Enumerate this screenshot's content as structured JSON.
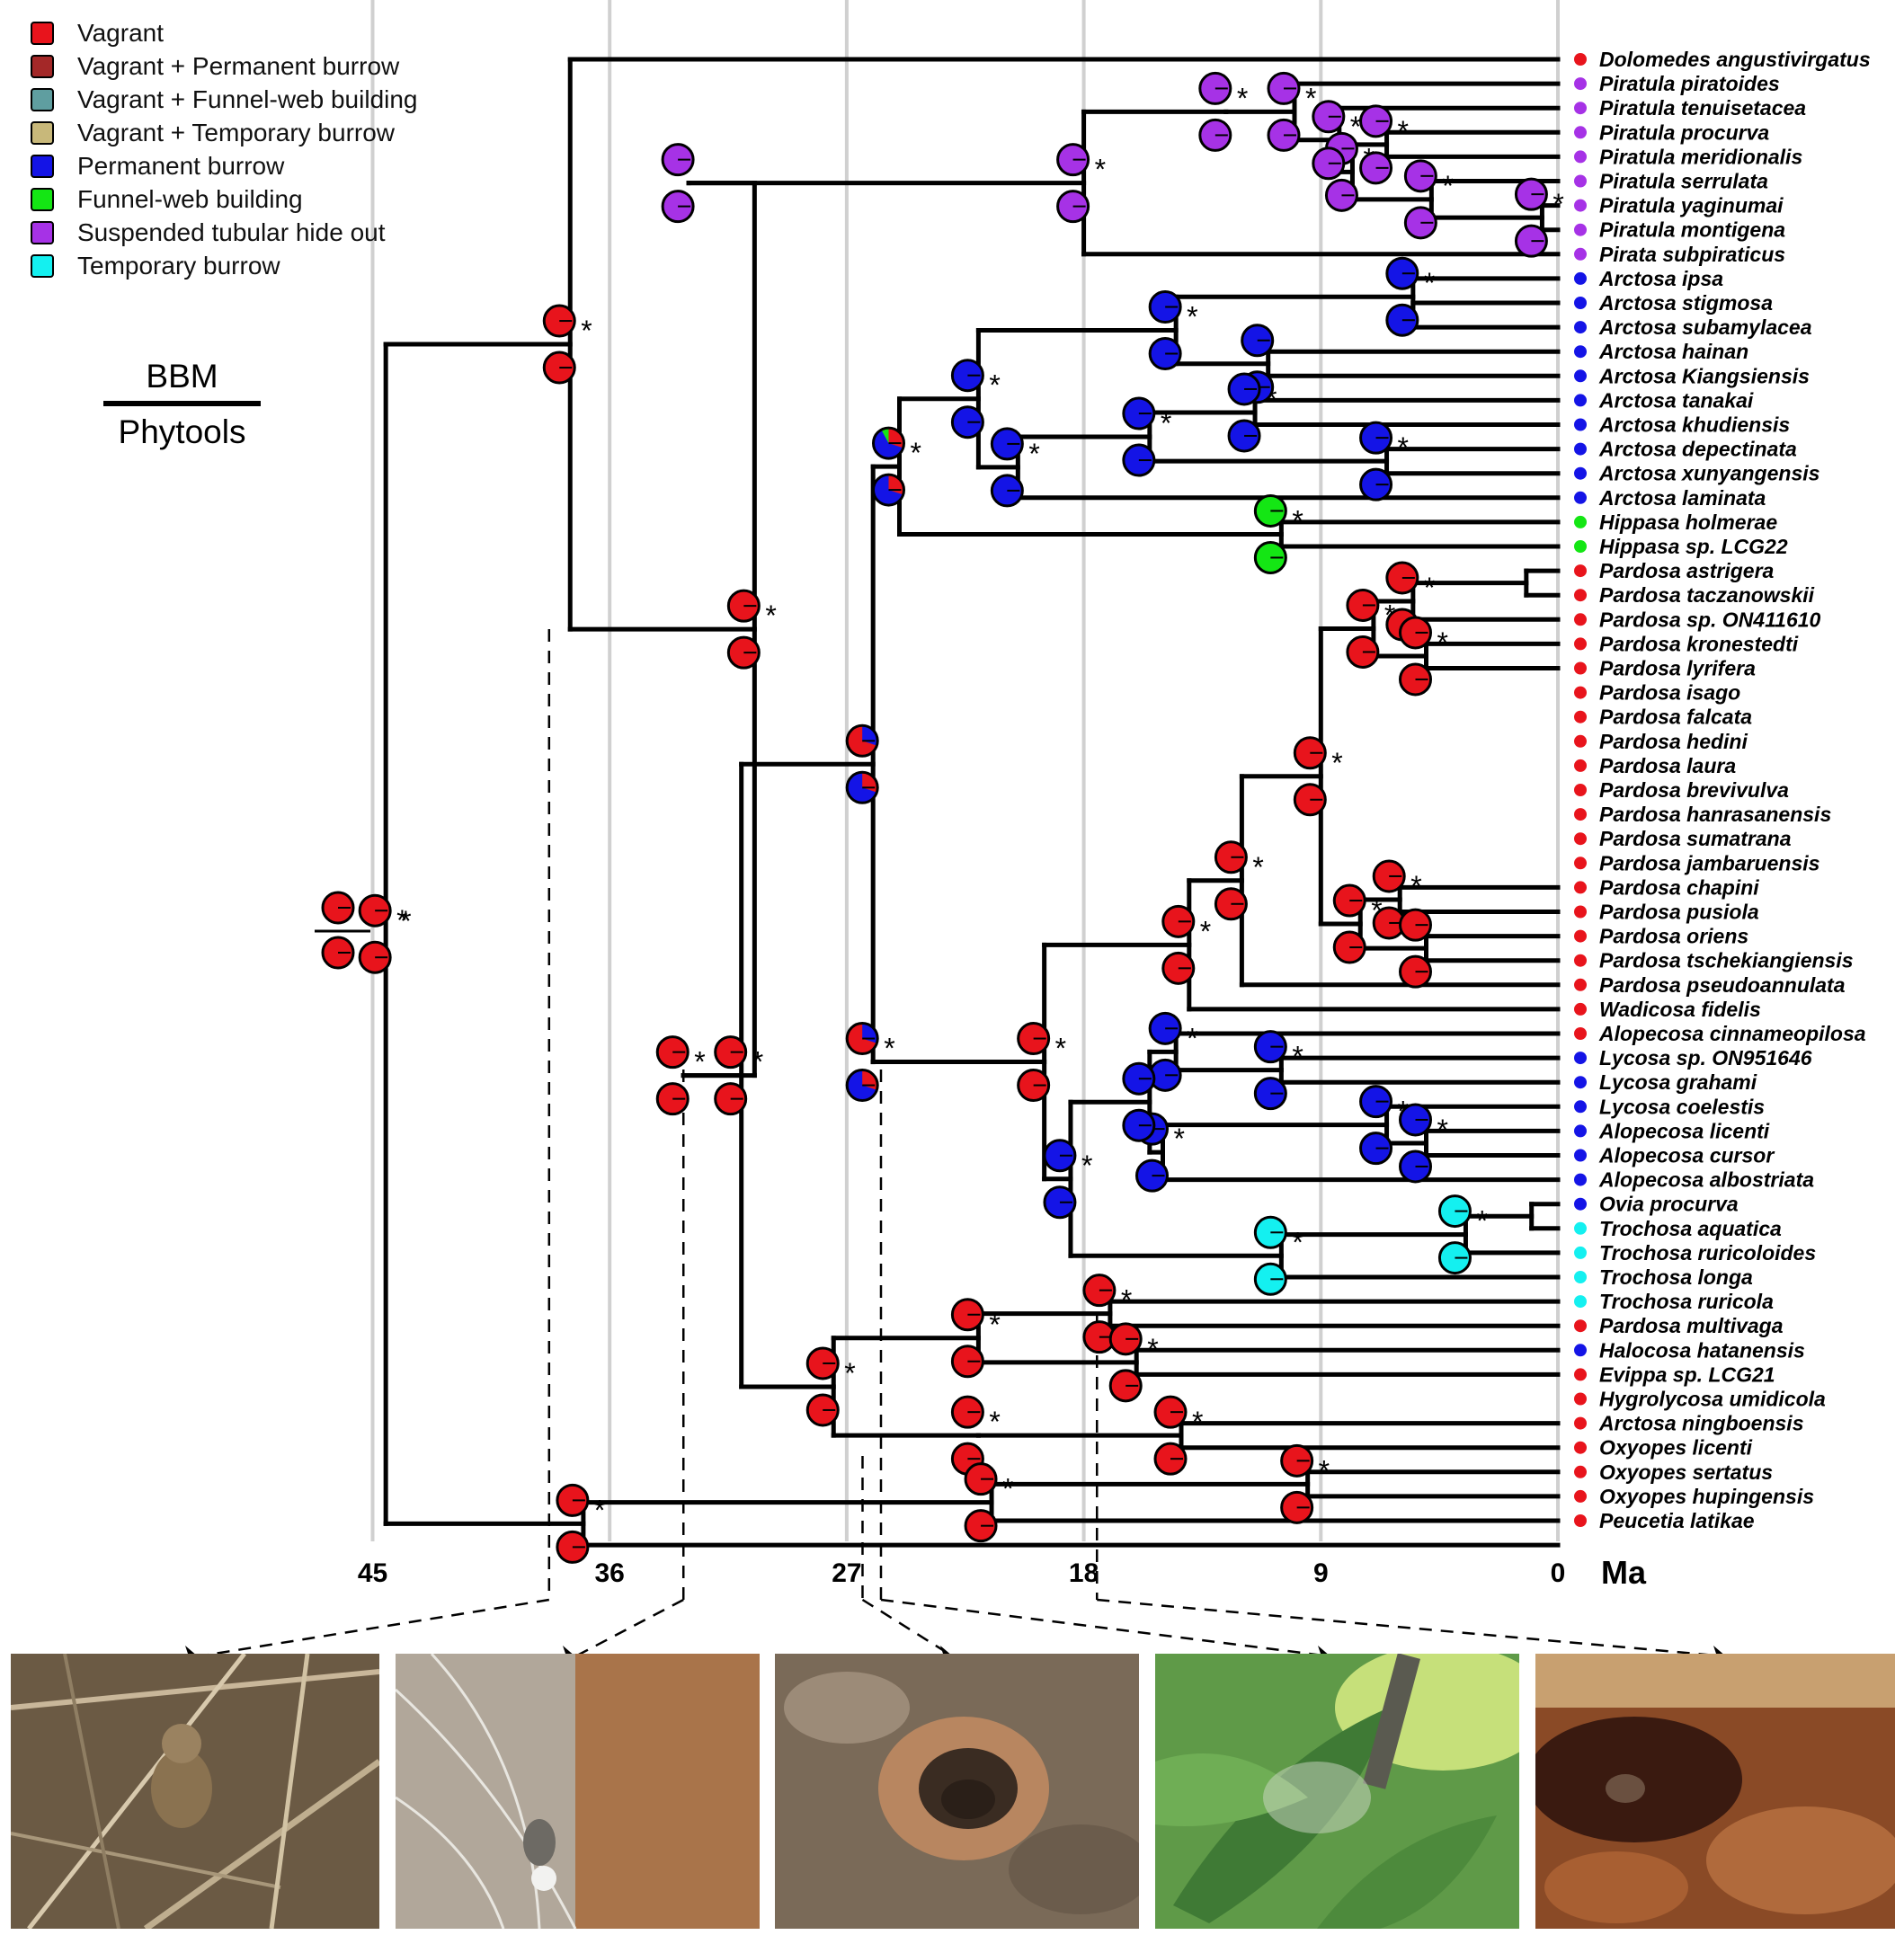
{
  "legend": {
    "items": [
      {
        "label": "Vagrant",
        "color": "#e8141c"
      },
      {
        "label": "Vagrant + Permanent burrow",
        "color": "#a42828"
      },
      {
        "label": "Vagrant + Funnel-web building",
        "color": "#5f9ea0"
      },
      {
        "label": "Vagrant + Temporary burrow",
        "color": "#c8b87a"
      },
      {
        "label": "Permanent burrow",
        "color": "#1414e6"
      },
      {
        "label": "Funnel-web building",
        "color": "#14e614"
      },
      {
        "label": "Suspended tubular hide out",
        "color": "#a632e6"
      },
      {
        "label": "Temporary burrow",
        "color": "#14f0f0"
      }
    ]
  },
  "methods": {
    "top": "BBM",
    "bottom": "Phytools"
  },
  "axis": {
    "ticks": [
      "45",
      "36",
      "27",
      "18",
      "9",
      "0"
    ],
    "unit": "Ma"
  },
  "taxa": [
    {
      "label": "Dolomedes angustivirgatus",
      "state": "Vagrant"
    },
    {
      "label": "Piratula piratoides",
      "state": "Suspended tubular hide out"
    },
    {
      "label": "Piratula tenuisetacea",
      "state": "Suspended tubular hide out"
    },
    {
      "label": "Piratula procurva",
      "state": "Suspended tubular hide out"
    },
    {
      "label": "Piratula meridionalis",
      "state": "Suspended tubular hide out"
    },
    {
      "label": "Piratula serrulata",
      "state": "Suspended tubular hide out"
    },
    {
      "label": "Piratula yaginumai",
      "state": "Suspended tubular hide out"
    },
    {
      "label": "Piratula montigena",
      "state": "Suspended tubular hide out"
    },
    {
      "label": "Pirata subpiraticus",
      "state": "Suspended tubular hide out"
    },
    {
      "label": "Arctosa ipsa",
      "state": "Permanent burrow"
    },
    {
      "label": "Arctosa stigmosa",
      "state": "Permanent burrow"
    },
    {
      "label": "Arctosa subamylacea",
      "state": "Permanent burrow"
    },
    {
      "label": "Arctosa hainan",
      "state": "Permanent burrow"
    },
    {
      "label": "Arctosa Kiangsiensis",
      "state": "Permanent burrow"
    },
    {
      "label": "Arctosa tanakai",
      "state": "Permanent burrow"
    },
    {
      "label": "Arctosa khudiensis",
      "state": "Permanent burrow"
    },
    {
      "label": "Arctosa depectinata",
      "state": "Permanent burrow"
    },
    {
      "label": "Arctosa xunyangensis",
      "state": "Permanent burrow"
    },
    {
      "label": "Arctosa laminata",
      "state": "Permanent burrow"
    },
    {
      "label": "Hippasa holmerae",
      "state": "Funnel-web building"
    },
    {
      "label": "Hippasa sp. LCG22",
      "state": "Funnel-web building"
    },
    {
      "label": "Pardosa astrigera",
      "state": "Vagrant"
    },
    {
      "label": "Pardosa taczanowskii",
      "state": "Vagrant"
    },
    {
      "label": "Pardosa sp. ON411610",
      "state": "Vagrant"
    },
    {
      "label": "Pardosa kronestedti",
      "state": "Vagrant"
    },
    {
      "label": "Pardosa lyrifera",
      "state": "Vagrant"
    },
    {
      "label": "Pardosa isago",
      "state": "Vagrant"
    },
    {
      "label": "Pardosa falcata",
      "state": "Vagrant"
    },
    {
      "label": "Pardosa hedini",
      "state": "Vagrant"
    },
    {
      "label": "Pardosa laura",
      "state": "Vagrant"
    },
    {
      "label": "Pardosa brevivulva",
      "state": "Vagrant"
    },
    {
      "label": "Pardosa hanrasanensis",
      "state": "Vagrant"
    },
    {
      "label": "Pardosa sumatrana",
      "state": "Vagrant"
    },
    {
      "label": "Pardosa jambaruensis",
      "state": "Vagrant"
    },
    {
      "label": "Pardosa chapini",
      "state": "Vagrant"
    },
    {
      "label": "Pardosa pusiola",
      "state": "Vagrant"
    },
    {
      "label": "Pardosa oriens",
      "state": "Vagrant"
    },
    {
      "label": "Pardosa tschekiangiensis",
      "state": "Vagrant"
    },
    {
      "label": "Pardosa pseudoannulata",
      "state": "Vagrant"
    },
    {
      "label": "Wadicosa fidelis",
      "state": "Vagrant"
    },
    {
      "label": "Alopecosa cinnameopilosa",
      "state": "Vagrant"
    },
    {
      "label": "Lycosa sp. ON951646",
      "state": "Permanent burrow"
    },
    {
      "label": "Lycosa grahami",
      "state": "Permanent burrow"
    },
    {
      "label": "Lycosa coelestis",
      "state": "Permanent burrow"
    },
    {
      "label": "Alopecosa licenti",
      "state": "Permanent burrow"
    },
    {
      "label": "Alopecosa cursor",
      "state": "Permanent burrow"
    },
    {
      "label": "Alopecosa albostriata",
      "state": "Permanent burrow"
    },
    {
      "label": "Ovia procurva",
      "state": "Permanent burrow"
    },
    {
      "label": "Trochosa aquatica",
      "state": "Temporary burrow"
    },
    {
      "label": "Trochosa ruricoloides",
      "state": "Temporary burrow"
    },
    {
      "label": "Trochosa longa",
      "state": "Temporary burrow"
    },
    {
      "label": "Trochosa ruricola",
      "state": "Temporary burrow"
    },
    {
      "label": "Pardosa multivaga",
      "state": "Vagrant"
    },
    {
      "label": "Halocosa hatanensis",
      "state": "Permanent burrow"
    },
    {
      "label": "Evippa sp. LCG21",
      "state": "Vagrant"
    },
    {
      "label": "Hygrolycosa umidicola",
      "state": "Vagrant"
    },
    {
      "label": "Arctosa ningboensis",
      "state": "Vagrant"
    },
    {
      "label": "Oxyopes licenti",
      "state": "Vagrant"
    },
    {
      "label": "Oxyopes sertatus",
      "state": "Vagrant"
    },
    {
      "label": "Oxyopes hupingensis",
      "state": "Vagrant"
    },
    {
      "label": "Peucetia latikae",
      "state": "Vagrant"
    }
  ],
  "support_marker": "*",
  "photos": [
    {
      "icon": "wandering-spider-photo"
    },
    {
      "icon": "funnel-web-spider-photo"
    },
    {
      "icon": "burrow-turret-photo"
    },
    {
      "icon": "tubular-hideout-leaf-photo"
    },
    {
      "icon": "temporary-burrow-photo"
    }
  ]
}
